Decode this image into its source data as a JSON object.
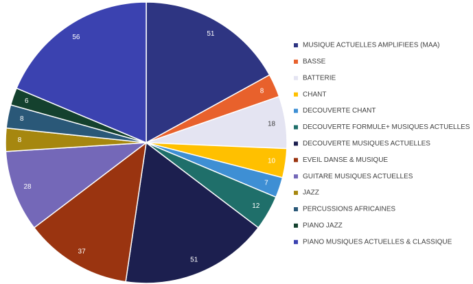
{
  "chart_data": {
    "type": "pie",
    "title": "",
    "categories": [
      "MUSIQUE ACTUELLES AMPLIFIEES (MAA)",
      "BASSE",
      "BATTERIE",
      "CHANT",
      "DECOUVERTE CHANT",
      "DECOUVERTE FORMULE+ MUSIQUES ACTUELLES",
      "DECOUVERTE MUSIQUES ACTUELLES",
      "EVEIL DANSE & MUSIQUE",
      "GUITARE MUSIQUES ACTUELLES",
      "JAZZ",
      "PERCUSSIONS AFRICAINES",
      "PIANO JAZZ",
      "PIANO MUSIQUES ACTUELLES & CLASSIQUE"
    ],
    "values": [
      51,
      8,
      18,
      10,
      7,
      12,
      51,
      37,
      28,
      8,
      8,
      6,
      56
    ],
    "colors": [
      "#2E3582",
      "#E8612C",
      "#E4E4F2",
      "#FFC000",
      "#3E8FD4",
      "#1F6F6A",
      "#1C1F4F",
      "#9A3410",
      "#7468B8",
      "#A6870F",
      "#2A5878",
      "#14412E",
      "#3B42B0"
    ],
    "label_colors": [
      "#ffffff",
      "#ffffff",
      "#404040",
      "#ffffff",
      "#ffffff",
      "#ffffff",
      "#ffffff",
      "#ffffff",
      "#ffffff",
      "#ffffff",
      "#ffffff",
      "#ffffff",
      "#ffffff"
    ],
    "start_direction": "top",
    "direction": "clockwise",
    "data_labels": true,
    "legend_position": "right"
  }
}
